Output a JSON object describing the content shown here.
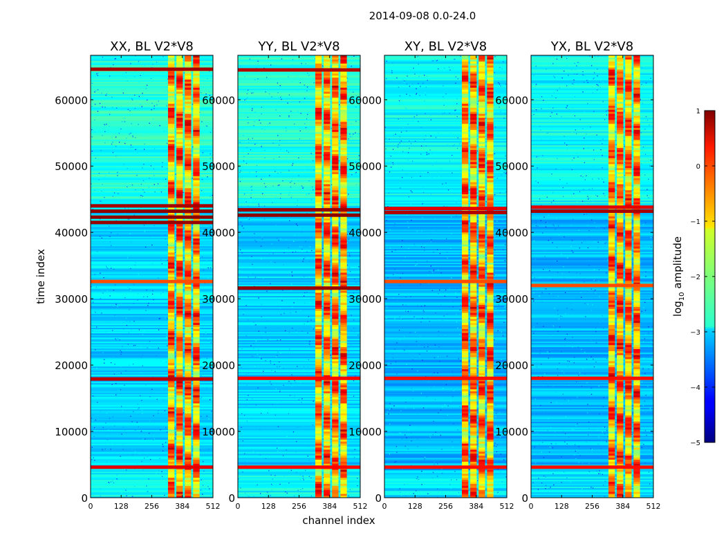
{
  "suptitle": "2014-09-08 0.0-24.0",
  "xlabel": "channel index",
  "ylabel": "time index",
  "chart_data": {
    "type": "heatmap",
    "title": "2014-09-08 0.0-24.0",
    "xlabel": "channel index",
    "ylabel": "time index",
    "xlim": [
      0,
      512
    ],
    "ylim": [
      0,
      66700
    ],
    "x_ticks": [
      "0",
      "128",
      "256",
      "384",
      "512"
    ],
    "x_tick_values": [
      0,
      128,
      256,
      384,
      512
    ],
    "y_ticks": [
      "0",
      "10000",
      "20000",
      "30000",
      "40000",
      "50000",
      "60000"
    ],
    "y_tick_values": [
      0,
      10000,
      20000,
      30000,
      40000,
      50000,
      60000
    ],
    "colorbar": {
      "label": "log10 amplitude",
      "label_main": "log",
      "label_sub": "10",
      "label_rest": " amplitude",
      "range": [
        -5,
        1
      ],
      "ticks": [
        "1",
        "0",
        "−1",
        "−2",
        "−3",
        "−4",
        "−5"
      ],
      "tick_values": [
        1,
        0,
        -1,
        -2,
        -3,
        -4,
        -5
      ],
      "colormap": "jet"
    },
    "panels": [
      {
        "title": "XX, BL V2*V8",
        "strong_bands": [
          [
            4600,
            0.6
          ],
          [
            17900,
            0.75
          ],
          [
            32600,
            0.2
          ],
          [
            41500,
            0.9
          ],
          [
            42300,
            0.95
          ],
          [
            43200,
            0.95
          ],
          [
            44000,
            0.85
          ],
          [
            64600,
            0.85
          ]
        ]
      },
      {
        "title": "YY, BL V2*V8",
        "strong_bands": [
          [
            4600,
            0.5
          ],
          [
            18000,
            0.5
          ],
          [
            31600,
            0.9
          ],
          [
            42600,
            0.95
          ],
          [
            43400,
            0.9
          ],
          [
            64500,
            0.8
          ]
        ]
      },
      {
        "title": "XY, BL V2*V8",
        "strong_bands": [
          [
            4600,
            0.45
          ],
          [
            18000,
            0.45
          ],
          [
            32600,
            0.2
          ],
          [
            43000,
            0.8
          ],
          [
            43600,
            0.6
          ]
        ]
      },
      {
        "title": "YX, BL V2*V8",
        "strong_bands": [
          [
            4600,
            0.45
          ],
          [
            18000,
            0.45
          ],
          [
            32000,
            0.2
          ],
          [
            43200,
            0.85
          ],
          [
            43800,
            0.6
          ]
        ]
      }
    ],
    "bright_channel_range": [
      320,
      460
    ],
    "colors": {
      "low": "#00007f",
      "mid": "#7fff7f",
      "high": "#7f0000"
    }
  }
}
